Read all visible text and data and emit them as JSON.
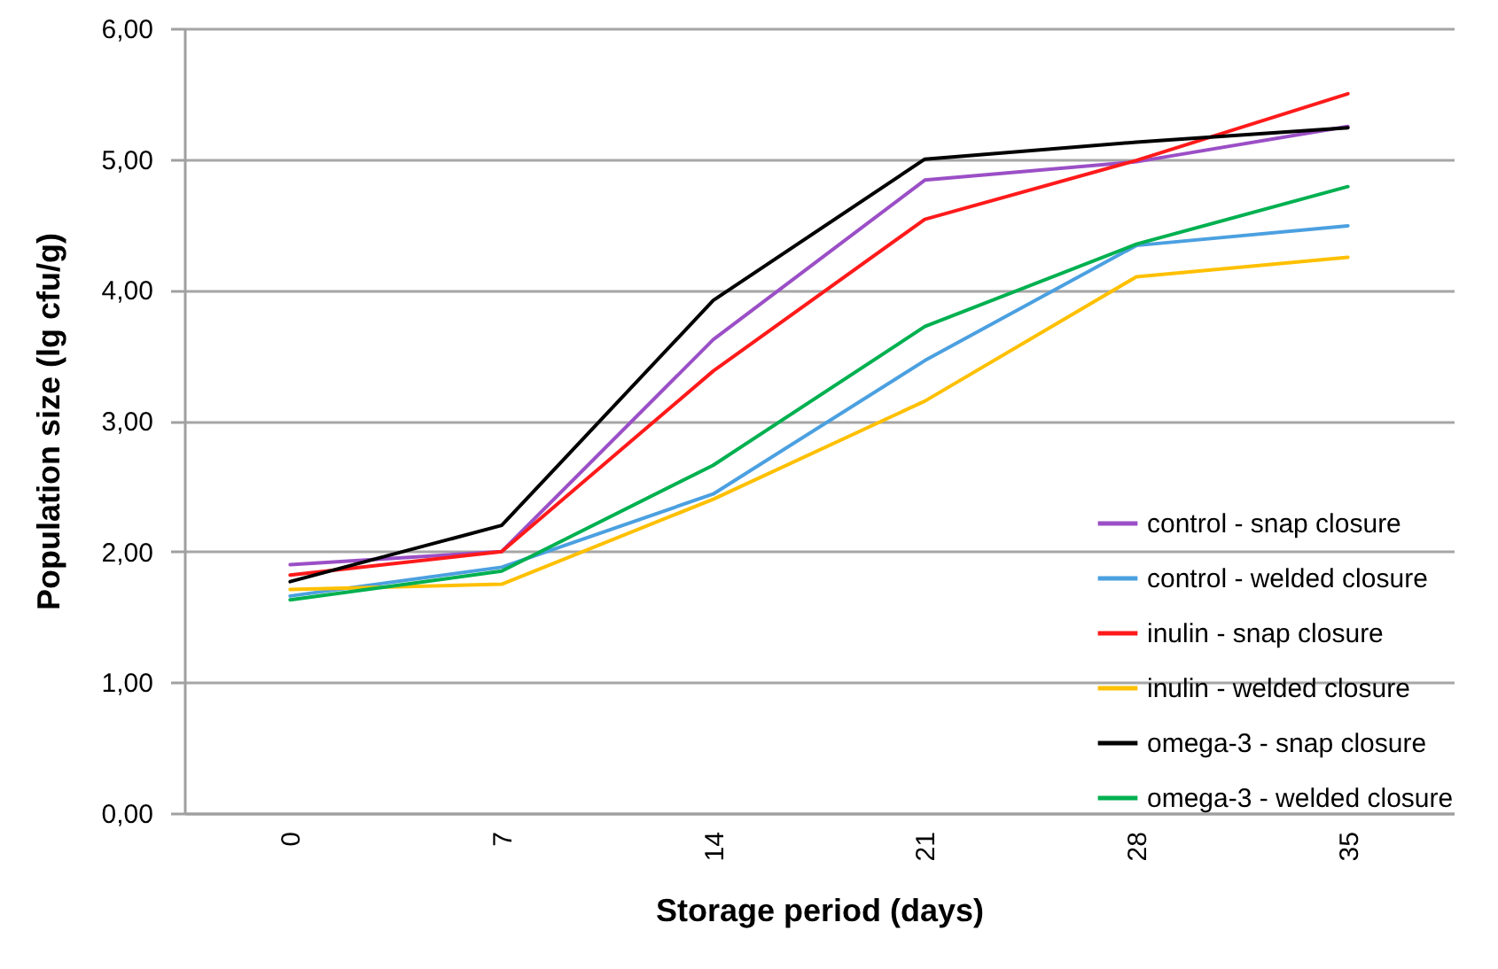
{
  "chart_data": {
    "type": "line",
    "xlabel": "Storage period (days)",
    "ylabel": "Population  size (lg cfu/g)",
    "categories": [
      "0",
      "7",
      "14",
      "21",
      "28",
      "35"
    ],
    "ylim": [
      0,
      6
    ],
    "yticks": [
      {
        "value": 0,
        "label": "0,00"
      },
      {
        "value": 1,
        "label": "1,00"
      },
      {
        "value": 2,
        "label": "2,00"
      },
      {
        "value": 3,
        "label": "3,00"
      },
      {
        "value": 4,
        "label": "4,00"
      },
      {
        "value": 5,
        "label": "5,00"
      },
      {
        "value": 6,
        "label": "6,00"
      }
    ],
    "grid": "y",
    "legend": "bottom right",
    "marker": "none",
    "line_style": "solid",
    "series": [
      {
        "name": "control - snap closure",
        "color": "#9b4fc6",
        "values": [
          1.9,
          2.0,
          3.62,
          4.84,
          4.98,
          5.25
        ]
      },
      {
        "name": "control - welded closure",
        "color": "#4ba0e0",
        "values": [
          1.66,
          1.88,
          2.44,
          3.46,
          4.34,
          4.49
        ]
      },
      {
        "name": "inulin - snap closure",
        "color": "#ff1a1a",
        "values": [
          1.82,
          2.0,
          3.38,
          4.54,
          4.99,
          5.5
        ]
      },
      {
        "name": "inulin - welded closure",
        "color": "#ffc000",
        "values": [
          1.71,
          1.75,
          2.4,
          3.15,
          4.1,
          4.25
        ]
      },
      {
        "name": "omega-3 - snap closure",
        "color": "#000000",
        "values": [
          1.77,
          2.2,
          3.92,
          5.0,
          5.13,
          5.24
        ]
      },
      {
        "name": "omega-3 - welded closure",
        "color": "#00b050",
        "values": [
          1.63,
          1.85,
          2.66,
          3.72,
          4.35,
          4.79
        ]
      }
    ]
  }
}
